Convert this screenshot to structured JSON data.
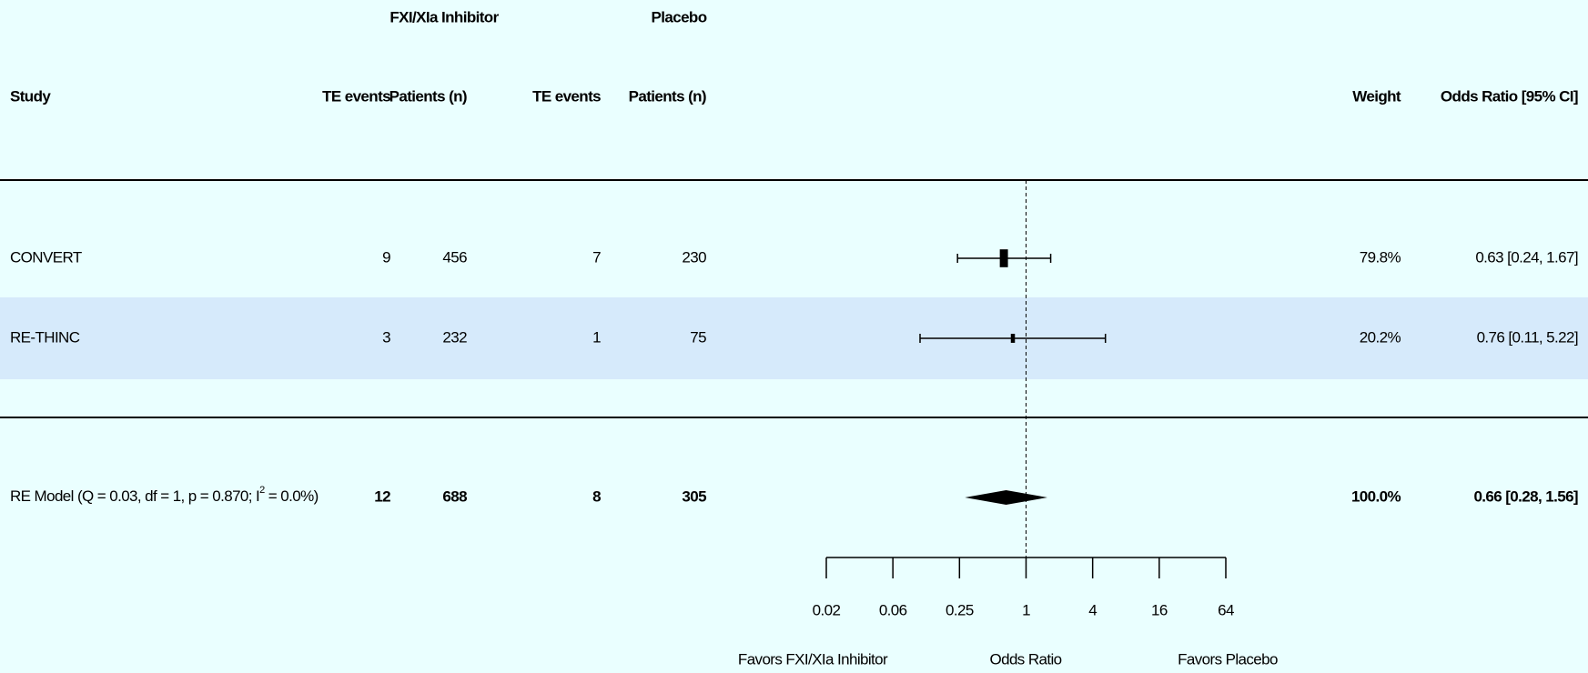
{
  "chart_data": {
    "type": "forest",
    "group_headers": [
      "FXI/XIa Inhibitor",
      "Placebo"
    ],
    "columns": [
      "Study",
      "TE events",
      "Patients (n)",
      "TE events",
      "Patients (n)",
      "Weight",
      "Odds Ratio [95% CI]"
    ],
    "studies": [
      {
        "name": "CONVERT",
        "te_events_treatment": 9,
        "patients_treatment": 456,
        "te_events_placebo": 7,
        "patients_placebo": 230,
        "weight": 79.8,
        "weight_label": "79.8%",
        "or": 0.63,
        "ci_low": 0.24,
        "ci_high": 1.67,
        "or_label": "0.63 [0.24, 1.67]"
      },
      {
        "name": "RE-THINC",
        "te_events_treatment": 3,
        "patients_treatment": 232,
        "te_events_placebo": 1,
        "patients_placebo": 75,
        "weight": 20.2,
        "weight_label": "20.2%",
        "or": 0.76,
        "ci_low": 0.11,
        "ci_high": 5.22,
        "or_label": "0.76 [0.11, 5.22]"
      }
    ],
    "summary": {
      "label_parts": [
        "RE Model (Q = 0.03, df = 1, p = 0.870; I",
        "2",
        " = 0.0%)"
      ],
      "te_events_treatment": 12,
      "patients_treatment": 688,
      "te_events_placebo": 8,
      "patients_placebo": 305,
      "weight": 100.0,
      "weight_label": "100.0%",
      "or": 0.66,
      "ci_low": 0.28,
      "ci_high": 1.56,
      "or_label": "0.66 [0.28,  1.56]"
    },
    "xlabel": "Odds Ratio",
    "left_label": "Favors FXI/XIa Inhibitor",
    "right_label": "Favors Placebo",
    "xscale": "log2",
    "xlim": [
      0.015625,
      64
    ],
    "xticks": [
      {
        "value": 0.015625,
        "label": "0.02"
      },
      {
        "value": 0.0625,
        "label": "0.06"
      },
      0.25,
      1,
      4,
      16,
      64
    ],
    "reference_line": 1,
    "highlight_rows": [
      1
    ],
    "color": "#000000",
    "highlight_color": "#d6eafb"
  }
}
